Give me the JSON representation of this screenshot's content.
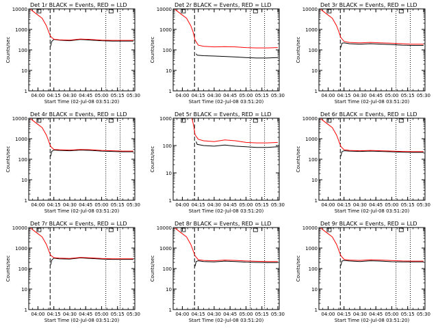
{
  "chart_data": [
    {
      "type": "line",
      "title": "Det 1r BLACK = Events, RED = LLD",
      "xlabel": "Start Time (02-Jul-08 03:51:20)",
      "ylabel": "Counts/sec",
      "y_scale": "log",
      "ylim": [
        1,
        10000
      ],
      "xlim": [
        "03:51:20",
        "05:31:20"
      ],
      "x_ticks": [
        "04:00",
        "04:15",
        "04:30",
        "04:45",
        "05:00",
        "05:15",
        "05:30"
      ],
      "y_ticks": [
        "1",
        "10",
        "100",
        "1000",
        "10000"
      ],
      "dashed_vline": "04:11:30",
      "dotted_vlines": [
        "05:04:00",
        "05:17:30"
      ],
      "series": [
        {
          "color": "#000000",
          "x": [
            "04:12",
            "04:13",
            "04:15",
            "04:20",
            "04:30",
            "04:40",
            "04:50",
            "05:00",
            "05:10",
            "05:20",
            "05:30"
          ],
          "y": [
            150,
            260,
            320,
            300,
            280,
            320,
            300,
            280,
            270,
            270,
            270
          ]
        },
        {
          "color": "#ff0000",
          "x": [
            "03:53",
            "03:58",
            "04:04",
            "04:08",
            "04:10",
            "04:12",
            "04:15",
            "04:20",
            "04:30",
            "04:40",
            "04:50",
            "05:00",
            "05:10",
            "05:20",
            "05:30"
          ],
          "y": [
            9500,
            6000,
            3500,
            1500,
            800,
            450,
            330,
            310,
            300,
            340,
            320,
            300,
            290,
            290,
            290
          ]
        }
      ]
    },
    {
      "type": "line",
      "title": "Det 2r BLACK = Events, RED = LLD",
      "xlabel": "Start Time (02-Jul-08 03:51:20)",
      "ylabel": "Counts/sec",
      "y_scale": "log",
      "ylim": [
        1,
        10000
      ],
      "xlim": [
        "03:51:20",
        "05:31:20"
      ],
      "x_ticks": [
        "04:00",
        "04:15",
        "04:30",
        "04:45",
        "05:00",
        "05:15",
        "05:30"
      ],
      "y_ticks": [
        "1",
        "10",
        "100",
        "1000",
        "10000"
      ],
      "dashed_vline": "04:11:30",
      "dotted_vlines": [
        "05:04:00",
        "05:17:30"
      ],
      "series": [
        {
          "color": "#000000",
          "x": [
            "04:13",
            "04:14",
            "04:20",
            "04:30",
            "04:40",
            "04:50",
            "05:00",
            "05:10",
            "05:20",
            "05:30"
          ],
          "y": [
            65,
            55,
            52,
            50,
            48,
            45,
            42,
            40,
            40,
            42
          ]
        },
        {
          "color": "#ff0000",
          "x": [
            "03:53",
            "03:58",
            "04:04",
            "04:08",
            "04:10",
            "04:12",
            "04:15",
            "04:20",
            "04:30",
            "04:40",
            "04:50",
            "05:00",
            "05:10",
            "05:20",
            "05:30"
          ],
          "y": [
            9500,
            6000,
            3500,
            1500,
            800,
            300,
            170,
            150,
            140,
            145,
            140,
            130,
            125,
            125,
            130
          ]
        }
      ]
    },
    {
      "type": "line",
      "title": "Det 3r BLACK = Events, RED = LLD",
      "xlabel": "Start Time (02-Jul-08 03:51:20)",
      "ylabel": "Counts/sec",
      "y_scale": "log",
      "ylim": [
        1,
        10000
      ],
      "xlim": [
        "03:51:20",
        "05:31:20"
      ],
      "x_ticks": [
        "04:00",
        "04:15",
        "04:30",
        "04:45",
        "05:00",
        "05:15",
        "05:30"
      ],
      "y_ticks": [
        "1",
        "10",
        "100",
        "1000",
        "10000"
      ],
      "dashed_vline": "04:11:30",
      "dotted_vlines": [
        "05:04:00",
        "05:17:30"
      ],
      "series": [
        {
          "color": "#000000",
          "x": [
            "04:12",
            "04:13",
            "04:15",
            "04:20",
            "04:30",
            "04:40",
            "04:50",
            "05:00",
            "05:10",
            "05:20",
            "05:30"
          ],
          "y": [
            130,
            210,
            220,
            200,
            190,
            200,
            190,
            180,
            170,
            165,
            165
          ]
        },
        {
          "color": "#ff0000",
          "x": [
            "03:53",
            "03:58",
            "04:04",
            "04:08",
            "04:10",
            "04:12",
            "04:15",
            "04:20",
            "04:30",
            "04:40",
            "04:50",
            "05:00",
            "05:10",
            "05:20",
            "05:30"
          ],
          "y": [
            9500,
            6000,
            3500,
            1500,
            800,
            400,
            260,
            230,
            220,
            230,
            220,
            210,
            200,
            190,
            190
          ]
        }
      ]
    },
    {
      "type": "line",
      "title": "Det 4r BLACK = Events, RED = LLD",
      "xlabel": "Start Time (02-Jul-08 03:51:20)",
      "ylabel": "Counts/sec",
      "y_scale": "log",
      "ylim": [
        1,
        10000
      ],
      "xlim": [
        "03:51:20",
        "05:31:20"
      ],
      "x_ticks": [
        "04:00",
        "04:15",
        "04:30",
        "04:45",
        "05:00",
        "05:15",
        "05:30"
      ],
      "y_ticks": [
        "1",
        "10",
        "100",
        "1000",
        "10000"
      ],
      "dashed_vline": "04:11:30",
      "dotted_vlines": [
        "05:04:00",
        "05:17:30"
      ],
      "series": [
        {
          "color": "#000000",
          "x": [
            "04:12",
            "04:13",
            "04:15",
            "04:20",
            "04:30",
            "04:40",
            "04:50",
            "05:00",
            "05:10",
            "05:20",
            "05:30"
          ],
          "y": [
            140,
            240,
            280,
            270,
            260,
            280,
            270,
            250,
            240,
            230,
            230
          ]
        },
        {
          "color": "#ff0000",
          "x": [
            "03:53",
            "03:58",
            "04:04",
            "04:08",
            "04:10",
            "04:12",
            "04:15",
            "04:20",
            "04:30",
            "04:40",
            "04:50",
            "05:00",
            "05:10",
            "05:20",
            "05:30"
          ],
          "y": [
            9500,
            6000,
            3500,
            1500,
            800,
            420,
            300,
            290,
            280,
            300,
            290,
            270,
            260,
            250,
            250
          ]
        }
      ]
    },
    {
      "type": "line",
      "title": "Det 5r BLACK = Events, RED = LLD",
      "xlabel": "Start Time (02-Jul-08 03:51:20)",
      "ylabel": "Counts/sec",
      "y_scale": "log",
      "ylim": [
        1,
        1000
      ],
      "xlim": [
        "03:51:20",
        "05:31:20"
      ],
      "x_ticks": [
        "04:00",
        "04:15",
        "04:30",
        "04:45",
        "05:00",
        "05:15",
        "05:30"
      ],
      "y_ticks": [
        "1",
        "10",
        "100",
        "1000"
      ],
      "dashed_vline": "04:11:30",
      "dotted_vlines": [
        "05:04:00",
        "05:17:30"
      ],
      "series": [
        {
          "color": "#000000",
          "x": [
            "04:13",
            "04:14",
            "04:20",
            "04:30",
            "04:40",
            "04:50",
            "05:00",
            "05:10",
            "05:20",
            "05:30"
          ],
          "y": [
            140,
            110,
            100,
            95,
            105,
            95,
            90,
            85,
            85,
            90
          ]
        },
        {
          "color": "#ff0000",
          "x": [
            "04:09",
            "04:10",
            "04:11",
            "04:12",
            "04:15",
            "04:20",
            "04:30",
            "04:40",
            "04:50",
            "05:00",
            "05:10",
            "05:20",
            "05:30"
          ],
          "y": [
            1000,
            700,
            450,
            250,
            170,
            150,
            140,
            160,
            150,
            130,
            125,
            125,
            130
          ]
        }
      ]
    },
    {
      "type": "line",
      "title": "Det 6r BLACK = Events, RED = LLD",
      "xlabel": "Start Time (02-Jul-08 03:51:20)",
      "ylabel": "Counts/sec",
      "y_scale": "log",
      "ylim": [
        1,
        10000
      ],
      "xlim": [
        "03:51:20",
        "05:31:20"
      ],
      "x_ticks": [
        "04:00",
        "04:15",
        "04:30",
        "04:45",
        "05:00",
        "05:15",
        "05:30"
      ],
      "y_ticks": [
        "1",
        "10",
        "100",
        "1000",
        "10000"
      ],
      "dashed_vline": "04:11:30",
      "dotted_vlines": [
        "05:04:00",
        "05:17:30"
      ],
      "series": [
        {
          "color": "#000000",
          "x": [
            "04:12",
            "04:13",
            "04:15",
            "04:20",
            "04:30",
            "04:40",
            "04:50",
            "05:00",
            "05:10",
            "05:20",
            "05:30"
          ],
          "y": [
            140,
            230,
            260,
            250,
            240,
            250,
            240,
            230,
            220,
            215,
            215
          ]
        },
        {
          "color": "#ff0000",
          "x": [
            "03:53",
            "03:58",
            "04:04",
            "04:08",
            "04:10",
            "04:12",
            "04:15",
            "04:20",
            "04:30",
            "04:40",
            "04:50",
            "05:00",
            "05:10",
            "05:20",
            "05:30"
          ],
          "y": [
            9500,
            6000,
            3500,
            1500,
            800,
            420,
            290,
            270,
            260,
            270,
            260,
            250,
            240,
            235,
            235
          ]
        }
      ]
    },
    {
      "type": "line",
      "title": "Det 7r BLACK = Events, RED = LLD",
      "xlabel": "Start Time (02-Jul-08 03:51:20)",
      "ylabel": "Counts/sec",
      "y_scale": "log",
      "ylim": [
        1,
        10000
      ],
      "xlim": [
        "03:51:20",
        "05:31:20"
      ],
      "x_ticks": [
        "04:00",
        "04:15",
        "04:30",
        "04:45",
        "05:00",
        "05:15",
        "05:30"
      ],
      "y_ticks": [
        "1",
        "10",
        "100",
        "1000",
        "10000"
      ],
      "dashed_vline": "04:11:30",
      "dotted_vlines": [
        "05:04:00",
        "05:17:30"
      ],
      "series": [
        {
          "color": "#000000",
          "x": [
            "04:12",
            "04:13",
            "04:15",
            "04:20",
            "04:30",
            "04:40",
            "04:50",
            "05:00",
            "05:10",
            "05:20",
            "05:30"
          ],
          "y": [
            150,
            260,
            320,
            300,
            290,
            330,
            310,
            290,
            280,
            280,
            280
          ]
        },
        {
          "color": "#ff0000",
          "x": [
            "03:53",
            "03:58",
            "04:04",
            "04:08",
            "04:10",
            "04:12",
            "04:15",
            "04:20",
            "04:30",
            "04:40",
            "04:50",
            "05:00",
            "05:10",
            "05:20",
            "05:30"
          ],
          "y": [
            9500,
            6000,
            3500,
            1500,
            800,
            450,
            340,
            320,
            310,
            350,
            330,
            310,
            300,
            300,
            300
          ]
        }
      ]
    },
    {
      "type": "line",
      "title": "Det 8r BLACK = Events, RED = LLD",
      "xlabel": "Start Time (02-Jul-08 03:51:20)",
      "ylabel": "Counts/sec",
      "y_scale": "log",
      "ylim": [
        1,
        10000
      ],
      "xlim": [
        "03:51:20",
        "05:31:20"
      ],
      "x_ticks": [
        "04:00",
        "04:15",
        "04:30",
        "04:45",
        "05:00",
        "05:15",
        "05:30"
      ],
      "y_ticks": [
        "1",
        "10",
        "100",
        "1000",
        "10000"
      ],
      "dashed_vline": "04:11:30",
      "dotted_vlines": [
        "05:04:00",
        "05:17:30"
      ],
      "series": [
        {
          "color": "#000000",
          "x": [
            "04:12",
            "04:13",
            "04:15",
            "04:20",
            "04:30",
            "04:40",
            "04:50",
            "05:00",
            "05:10",
            "05:20",
            "05:30"
          ],
          "y": [
            130,
            220,
            240,
            220,
            210,
            230,
            220,
            205,
            200,
            195,
            195
          ]
        },
        {
          "color": "#ff0000",
          "x": [
            "03:53",
            "03:58",
            "04:04",
            "04:08",
            "04:10",
            "04:12",
            "04:15",
            "04:20",
            "04:30",
            "04:40",
            "04:50",
            "05:00",
            "05:10",
            "05:20",
            "05:30"
          ],
          "y": [
            9500,
            6000,
            3500,
            1500,
            800,
            420,
            270,
            250,
            240,
            260,
            250,
            235,
            225,
            220,
            220
          ]
        }
      ]
    },
    {
      "type": "line",
      "title": "Det 9r BLACK = Events, RED = LLD",
      "xlabel": "Start Time (02-Jul-08 03:51:20)",
      "ylabel": "Counts/sec",
      "y_scale": "log",
      "ylim": [
        1,
        10000
      ],
      "xlim": [
        "03:51:20",
        "05:31:20"
      ],
      "x_ticks": [
        "04:00",
        "04:15",
        "04:30",
        "04:45",
        "05:00",
        "05:15",
        "05:30"
      ],
      "y_ticks": [
        "1",
        "10",
        "100",
        "1000",
        "10000"
      ],
      "dashed_vline": "04:11:30",
      "dotted_vlines": [
        "05:04:00",
        "05:17:30"
      ],
      "series": [
        {
          "color": "#000000",
          "x": [
            "04:12",
            "04:13",
            "04:15",
            "04:20",
            "04:30",
            "04:40",
            "04:50",
            "05:00",
            "05:10",
            "05:20",
            "05:30"
          ],
          "y": [
            140,
            230,
            250,
            235,
            220,
            240,
            230,
            215,
            210,
            210,
            210
          ]
        },
        {
          "color": "#ff0000",
          "x": [
            "03:53",
            "03:58",
            "04:04",
            "04:08",
            "04:10",
            "04:12",
            "04:15",
            "04:20",
            "04:30",
            "04:40",
            "04:50",
            "05:00",
            "05:10",
            "05:20",
            "05:30"
          ],
          "y": [
            9500,
            6000,
            3500,
            1500,
            800,
            430,
            280,
            260,
            250,
            270,
            260,
            245,
            235,
            230,
            230
          ]
        }
      ]
    }
  ]
}
